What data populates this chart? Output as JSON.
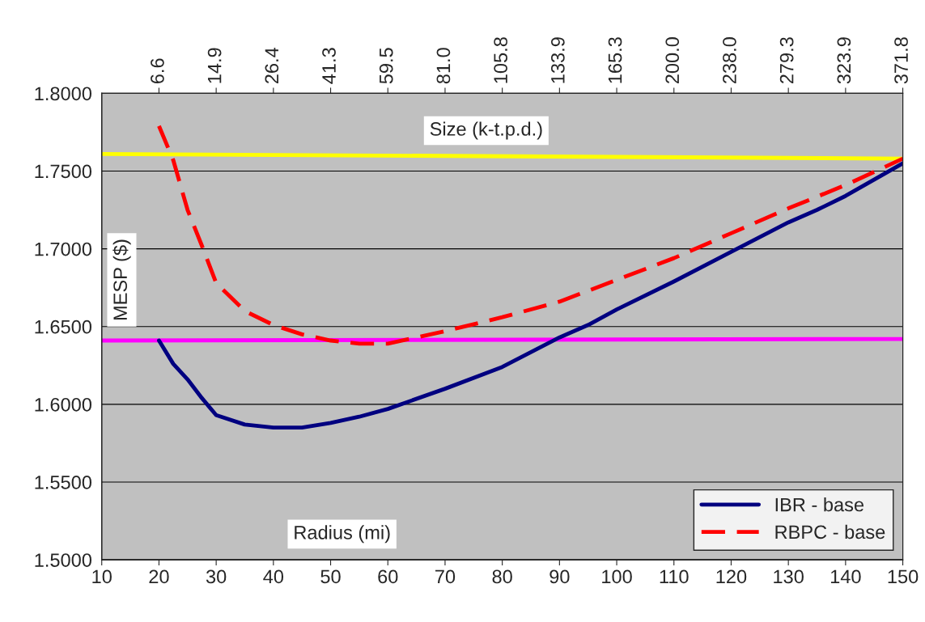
{
  "chart_data": {
    "type": "line",
    "xlabel": "Radius (mi)",
    "ylabel": "MESP ($)",
    "x2label": "Size (k-t.p.d.)",
    "xlim": [
      10,
      150
    ],
    "xticks": [
      10,
      20,
      30,
      40,
      50,
      60,
      70,
      80,
      90,
      100,
      110,
      120,
      130,
      140,
      150
    ],
    "annotations": [
      {
        "text": "6.6",
        "x": 20
      },
      {
        "text": "14.9",
        "x": 30
      },
      {
        "text": "26.4",
        "x": 40
      },
      {
        "text": "41.3",
        "x": 50
      },
      {
        "text": "59.5",
        "x": 60
      },
      {
        "text": "81.0",
        "x": 70
      },
      {
        "text": "105.8",
        "x": 80
      },
      {
        "text": "133.9",
        "x": 90
      },
      {
        "text": "165.3",
        "x": 100
      },
      {
        "text": "200.0",
        "x": 110
      },
      {
        "text": "238.0",
        "x": 120
      },
      {
        "text": "279.3",
        "x": 130
      },
      {
        "text": "323.9",
        "x": 140
      },
      {
        "text": "371.8",
        "x": 150
      }
    ],
    "ylim": [
      1.5,
      1.8
    ],
    "yticks": [
      {
        "value": 1.5,
        "label": "1.5000"
      },
      {
        "value": 1.55,
        "label": "1.5500"
      },
      {
        "value": 1.6,
        "label": "1.6000"
      },
      {
        "value": 1.65,
        "label": "1.6500"
      },
      {
        "value": 1.7,
        "label": "1.7000"
      },
      {
        "value": 1.75,
        "label": "1.7500"
      },
      {
        "value": 1.8,
        "label": "1.8000"
      }
    ],
    "grid": "y",
    "legend": "bottom right",
    "series": [
      {
        "color": "#ffff00",
        "line_style": "solid",
        "x": [
          10,
          150
        ],
        "values": [
          1.761,
          1.758
        ]
      },
      {
        "color": "#ff00ff",
        "line_style": "solid",
        "x": [
          10,
          150
        ],
        "values": [
          1.641,
          1.642
        ]
      },
      {
        "name": "IBR - base",
        "color": "#000080",
        "line_style": "solid",
        "x": [
          20,
          22.5,
          25,
          27.5,
          30,
          35,
          40,
          45,
          50,
          55,
          60,
          70,
          80,
          90,
          95,
          100,
          110,
          120,
          130,
          135,
          140,
          150
        ],
        "values": [
          1.641,
          1.626,
          1.616,
          1.604,
          1.593,
          1.587,
          1.585,
          1.585,
          1.588,
          1.592,
          1.597,
          1.61,
          1.624,
          1.643,
          1.651,
          1.661,
          1.679,
          1.698,
          1.717,
          1.725,
          1.734,
          1.755
        ]
      },
      {
        "name": "RBPC - base",
        "color": "#ff0000",
        "line_style": "dashed",
        "x": [
          20,
          22.5,
          25,
          27.5,
          30,
          35,
          40,
          45,
          50,
          55,
          60,
          70,
          80,
          90,
          100,
          110,
          120,
          130,
          140,
          150
        ],
        "values": [
          1.779,
          1.757,
          1.725,
          1.702,
          1.678,
          1.66,
          1.651,
          1.645,
          1.641,
          1.639,
          1.639,
          1.647,
          1.656,
          1.666,
          1.68,
          1.694,
          1.71,
          1.726,
          1.741,
          1.758
        ]
      }
    ]
  }
}
